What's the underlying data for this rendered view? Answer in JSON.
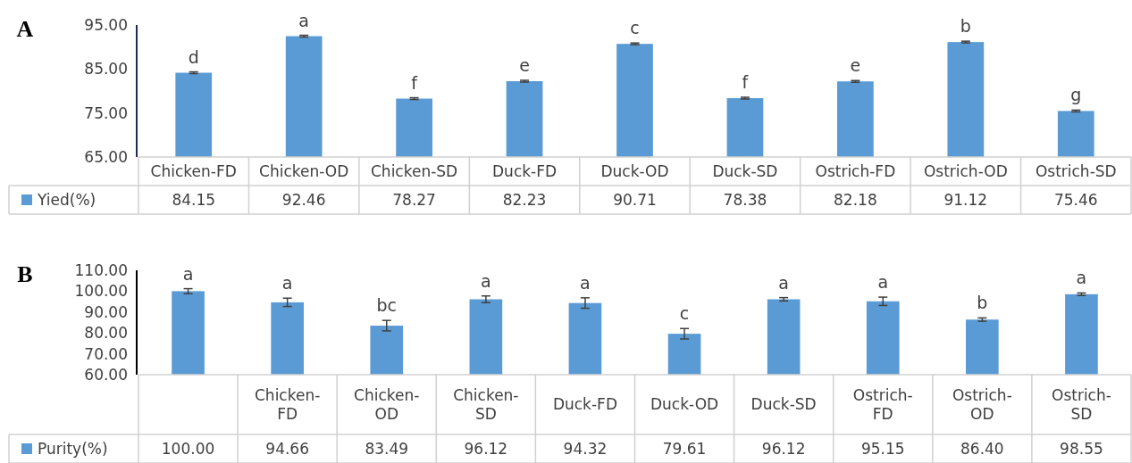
{
  "chart_data": [
    {
      "type": "bar",
      "title": "A",
      "categories": [
        "Chicken-FD",
        "Chicken-OD",
        "Chicken-SD",
        "Duck-FD",
        "Duck-OD",
        "Duck-SD",
        "Ostrich-FD",
        "Ostrich-OD",
        "Ostrich-SD"
      ],
      "series": [
        {
          "name": "Yied(%)",
          "color": "#5b9bd5",
          "values": [
            84.15,
            92.46,
            78.27,
            82.23,
            90.71,
            78.38,
            82.18,
            91.12,
            75.46
          ],
          "errors": [
            0.2,
            0.2,
            0.2,
            0.2,
            0.2,
            0.2,
            0.2,
            0.2,
            0.2
          ],
          "value_labels": [
            "84.15",
            "92.46",
            "78.27",
            "82.23",
            "90.71",
            "78.38",
            "82.18",
            "91.12",
            "75.46"
          ]
        }
      ],
      "ylim": [
        65,
        95
      ],
      "yticks": [
        {
          "value": 65,
          "label": "65.00"
        },
        {
          "value": 75,
          "label": "75.00"
        },
        {
          "value": 85,
          "label": "85.00"
        },
        {
          "value": 95,
          "label": "95.00"
        }
      ],
      "legend": "bottom",
      "annotations": [
        {
          "text": "d",
          "x": "Chicken-FD",
          "y": 84.15
        },
        {
          "text": "a",
          "x": "Chicken-OD",
          "y": 92.46
        },
        {
          "text": "f",
          "x": "Chicken-SD",
          "y": 78.27
        },
        {
          "text": "e",
          "x": "Duck-FD",
          "y": 82.23
        },
        {
          "text": "c",
          "x": "Duck-OD",
          "y": 90.71
        },
        {
          "text": "f",
          "x": "Duck-SD",
          "y": 78.38
        },
        {
          "text": "e",
          "x": "Ostrich-FD",
          "y": 82.18
        },
        {
          "text": "b",
          "x": "Ostrich-OD",
          "y": 91.12
        },
        {
          "text": "g",
          "x": "Ostrich-SD",
          "y": 75.46
        }
      ]
    },
    {
      "type": "bar",
      "title": "B",
      "categories": [
        null,
        "Chicken-FD",
        "Chicken-OD",
        "Chicken-SD",
        "Duck-FD",
        "Duck-OD",
        "Duck-SD",
        "Ostrich-FD",
        "Ostrich-OD",
        "Ostrich-SD"
      ],
      "series": [
        {
          "name": "Purity(%)",
          "color": "#5b9bd5",
          "values": [
            100.0,
            94.66,
            83.49,
            96.12,
            94.32,
            79.61,
            96.12,
            95.15,
            86.4,
            98.55
          ],
          "errors": [
            1.2,
            2,
            2.5,
            1.6,
            2.5,
            2.5,
            0.8,
            2,
            0.8,
            0.6
          ],
          "value_labels": [
            "100.00",
            "94.66",
            "83.49",
            "96.12",
            "94.32",
            "79.61",
            "96.12",
            "95.15",
            "86.40",
            "98.55"
          ]
        }
      ],
      "ylim": [
        60,
        110
      ],
      "yticks": [
        {
          "value": 60,
          "label": "60.00"
        },
        {
          "value": 70,
          "label": "70.00"
        },
        {
          "value": 80,
          "label": "80.00"
        },
        {
          "value": 90,
          "label": "90.00"
        },
        {
          "value": 100,
          "label": "100.00"
        },
        {
          "value": 110,
          "label": "110.00"
        }
      ],
      "legend": "bottom",
      "annotations": [
        "a",
        {
          "text": "a",
          "x": "Chicken-FD",
          "y": 94.66
        },
        {
          "text": "bc",
          "x": "Chicken-OD",
          "y": 83.49
        },
        {
          "text": "a",
          "x": "Chicken-SD",
          "y": 96.12
        },
        {
          "text": "a",
          "x": "Duck-FD",
          "y": 94.32
        },
        {
          "text": "c",
          "x": "Duck-OD",
          "y": 79.61
        },
        {
          "text": "a",
          "x": "Duck-SD",
          "y": 96.12
        },
        {
          "text": "a",
          "x": "Ostrich-FD",
          "y": 95.15
        },
        {
          "text": "b",
          "x": "Ostrich-OD",
          "y": 86.4
        },
        {
          "text": "a",
          "x": "Ostrich-SD",
          "y": 98.55
        }
      ]
    }
  ]
}
